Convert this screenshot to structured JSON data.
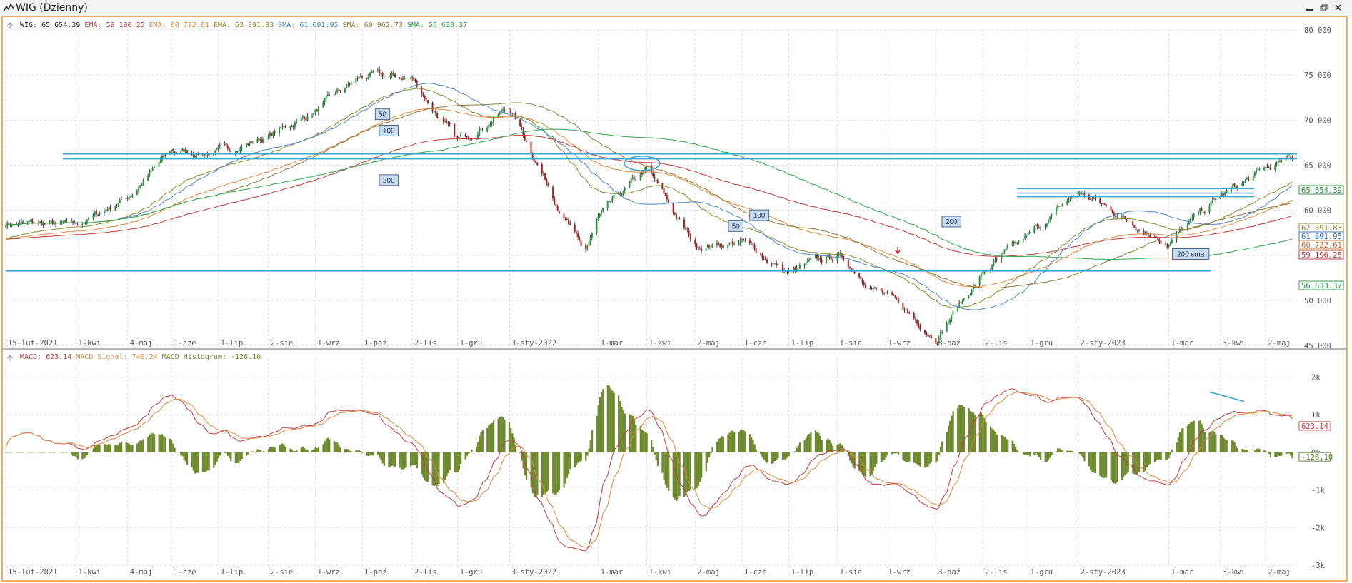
{
  "window": {
    "title": "WIG (Dzienny)",
    "controls": [
      "minimize",
      "restore",
      "close"
    ]
  },
  "chart_data": [
    {
      "type": "candlestick",
      "instrument": "WIG",
      "legend": [
        {
          "label": "WIG:",
          "value": "65 654.39",
          "color": "#222222"
        },
        {
          "label": "EMA:",
          "value": "59 196.25",
          "color": "#c43a3a"
        },
        {
          "label": "EMA:",
          "value": "60 722.61",
          "color": "#e0873c"
        },
        {
          "label": "EMA:",
          "value": "62 391.83",
          "color": "#8a8a2e"
        },
        {
          "label": "SMA:",
          "value": "61 691.95",
          "color": "#4a86c8"
        },
        {
          "label": "SMA:",
          "value": "60 962.73",
          "color": "#8a7a3a"
        },
        {
          "label": "SMA:",
          "value": "56 633.37",
          "color": "#2ea84a"
        }
      ],
      "ylim": [
        45000,
        80000
      ],
      "y_ticks": [
        "80 000",
        "75 000",
        "70 000",
        "65 000",
        "60 000",
        "55 000",
        "50 000",
        "45 000"
      ],
      "x_ticks": [
        "15-lut-2021",
        "1-kwi",
        "4-maj",
        "1-cze",
        "1-lip",
        "2-sie",
        "1-wrz",
        "1-paź",
        "2-lis",
        "1-gru",
        "3-sty-2022",
        "1-mar",
        "1-kwi",
        "2-maj",
        "1-cze",
        "1-lip",
        "1-sie",
        "1-wrz",
        "3-paź",
        "2-lis",
        "1-gru",
        "2-sty-2023",
        "1-mar",
        "3-kwi",
        "2-maj"
      ],
      "price_labels": [
        {
          "text": "65 654.39",
          "value": 65654.39,
          "color": "#1e8a3a"
        },
        {
          "text": "62 391.83",
          "value": 62391.83,
          "color": "#8a8a2e"
        },
        {
          "text": "61 691.95",
          "value": 61691.95,
          "color": "#2a72b8"
        },
        {
          "text": "60 722.61",
          "value": 60722.61,
          "color": "#c86a20"
        },
        {
          "text": "59 196.25",
          "value": 59196.25,
          "color": "#b83232"
        },
        {
          "text": "56 633.37",
          "value": 56633.37,
          "color": "#1e9a3e"
        }
      ],
      "annotations": [
        "50",
        "100",
        "200",
        "100",
        "50",
        "200",
        "200 sma"
      ],
      "horizontal_levels": [
        66250,
        65700,
        53250,
        62400,
        61900,
        61500
      ],
      "close_keypoints": [
        {
          "date": "2021-02-15",
          "close": 58600
        },
        {
          "date": "2021-04-01",
          "close": 58200
        },
        {
          "date": "2021-05-04",
          "close": 61500
        },
        {
          "date": "2021-06-01",
          "close": 66500
        },
        {
          "date": "2021-07-01",
          "close": 66400
        },
        {
          "date": "2021-08-02",
          "close": 68200
        },
        {
          "date": "2021-09-01",
          "close": 71000
        },
        {
          "date": "2021-10-01",
          "close": 74800
        },
        {
          "date": "2021-11-02",
          "close": 74600
        },
        {
          "date": "2021-12-01",
          "close": 67500
        },
        {
          "date": "2022-01-03",
          "close": 71500
        },
        {
          "date": "2022-02-20",
          "close": 55000
        },
        {
          "date": "2022-03-01",
          "close": 59000
        },
        {
          "date": "2022-04-01",
          "close": 64500
        },
        {
          "date": "2022-05-02",
          "close": 56000
        },
        {
          "date": "2022-06-01",
          "close": 56500
        },
        {
          "date": "2022-07-01",
          "close": 53000
        },
        {
          "date": "2022-08-01",
          "close": 55000
        },
        {
          "date": "2022-09-01",
          "close": 50500
        },
        {
          "date": "2022-10-03",
          "close": 46000
        },
        {
          "date": "2022-11-02",
          "close": 53000
        },
        {
          "date": "2022-12-01",
          "close": 57000
        },
        {
          "date": "2023-01-02",
          "close": 62000
        },
        {
          "date": "2023-03-01",
          "close": 56500
        },
        {
          "date": "2023-04-03",
          "close": 61500
        },
        {
          "date": "2023-05-02",
          "close": 64500
        },
        {
          "date": "2023-05-19",
          "close": 65654.39
        }
      ]
    },
    {
      "type": "macd",
      "legend": [
        {
          "label": "MACD:",
          "value": "623.14",
          "color": "#c43a3a"
        },
        {
          "label": "MACD Signal:",
          "value": "749.24",
          "color": "#e0873c"
        },
        {
          "label": "MACD Histogram:",
          "value": "-126.10",
          "color": "#6e8a2e"
        }
      ],
      "ylim": [
        -3000,
        2500
      ],
      "y_ticks": [
        "2k",
        "1k",
        "0k",
        "-1k",
        "-2k",
        "-3k"
      ],
      "x_ticks": [
        "15-lut-2021",
        "1-kwi",
        "4-maj",
        "1-cze",
        "1-lip",
        "2-sie",
        "1-wrz",
        "1-paź",
        "2-lis",
        "1-gru",
        "3-sty-2022",
        "1-mar",
        "1-kwi",
        "2-maj",
        "1-cze",
        "1-lip",
        "1-sie",
        "1-wrz",
        "3-paź",
        "2-lis",
        "1-gru",
        "2-sty-2023",
        "1-mar",
        "3-kwi",
        "2-maj"
      ],
      "price_labels": [
        {
          "text": "623.14",
          "value": 623.14,
          "color": "#c43a3a"
        },
        {
          "text": "-126.10",
          "value": -126.1,
          "color": "#4a7a1e"
        }
      ]
    }
  ]
}
